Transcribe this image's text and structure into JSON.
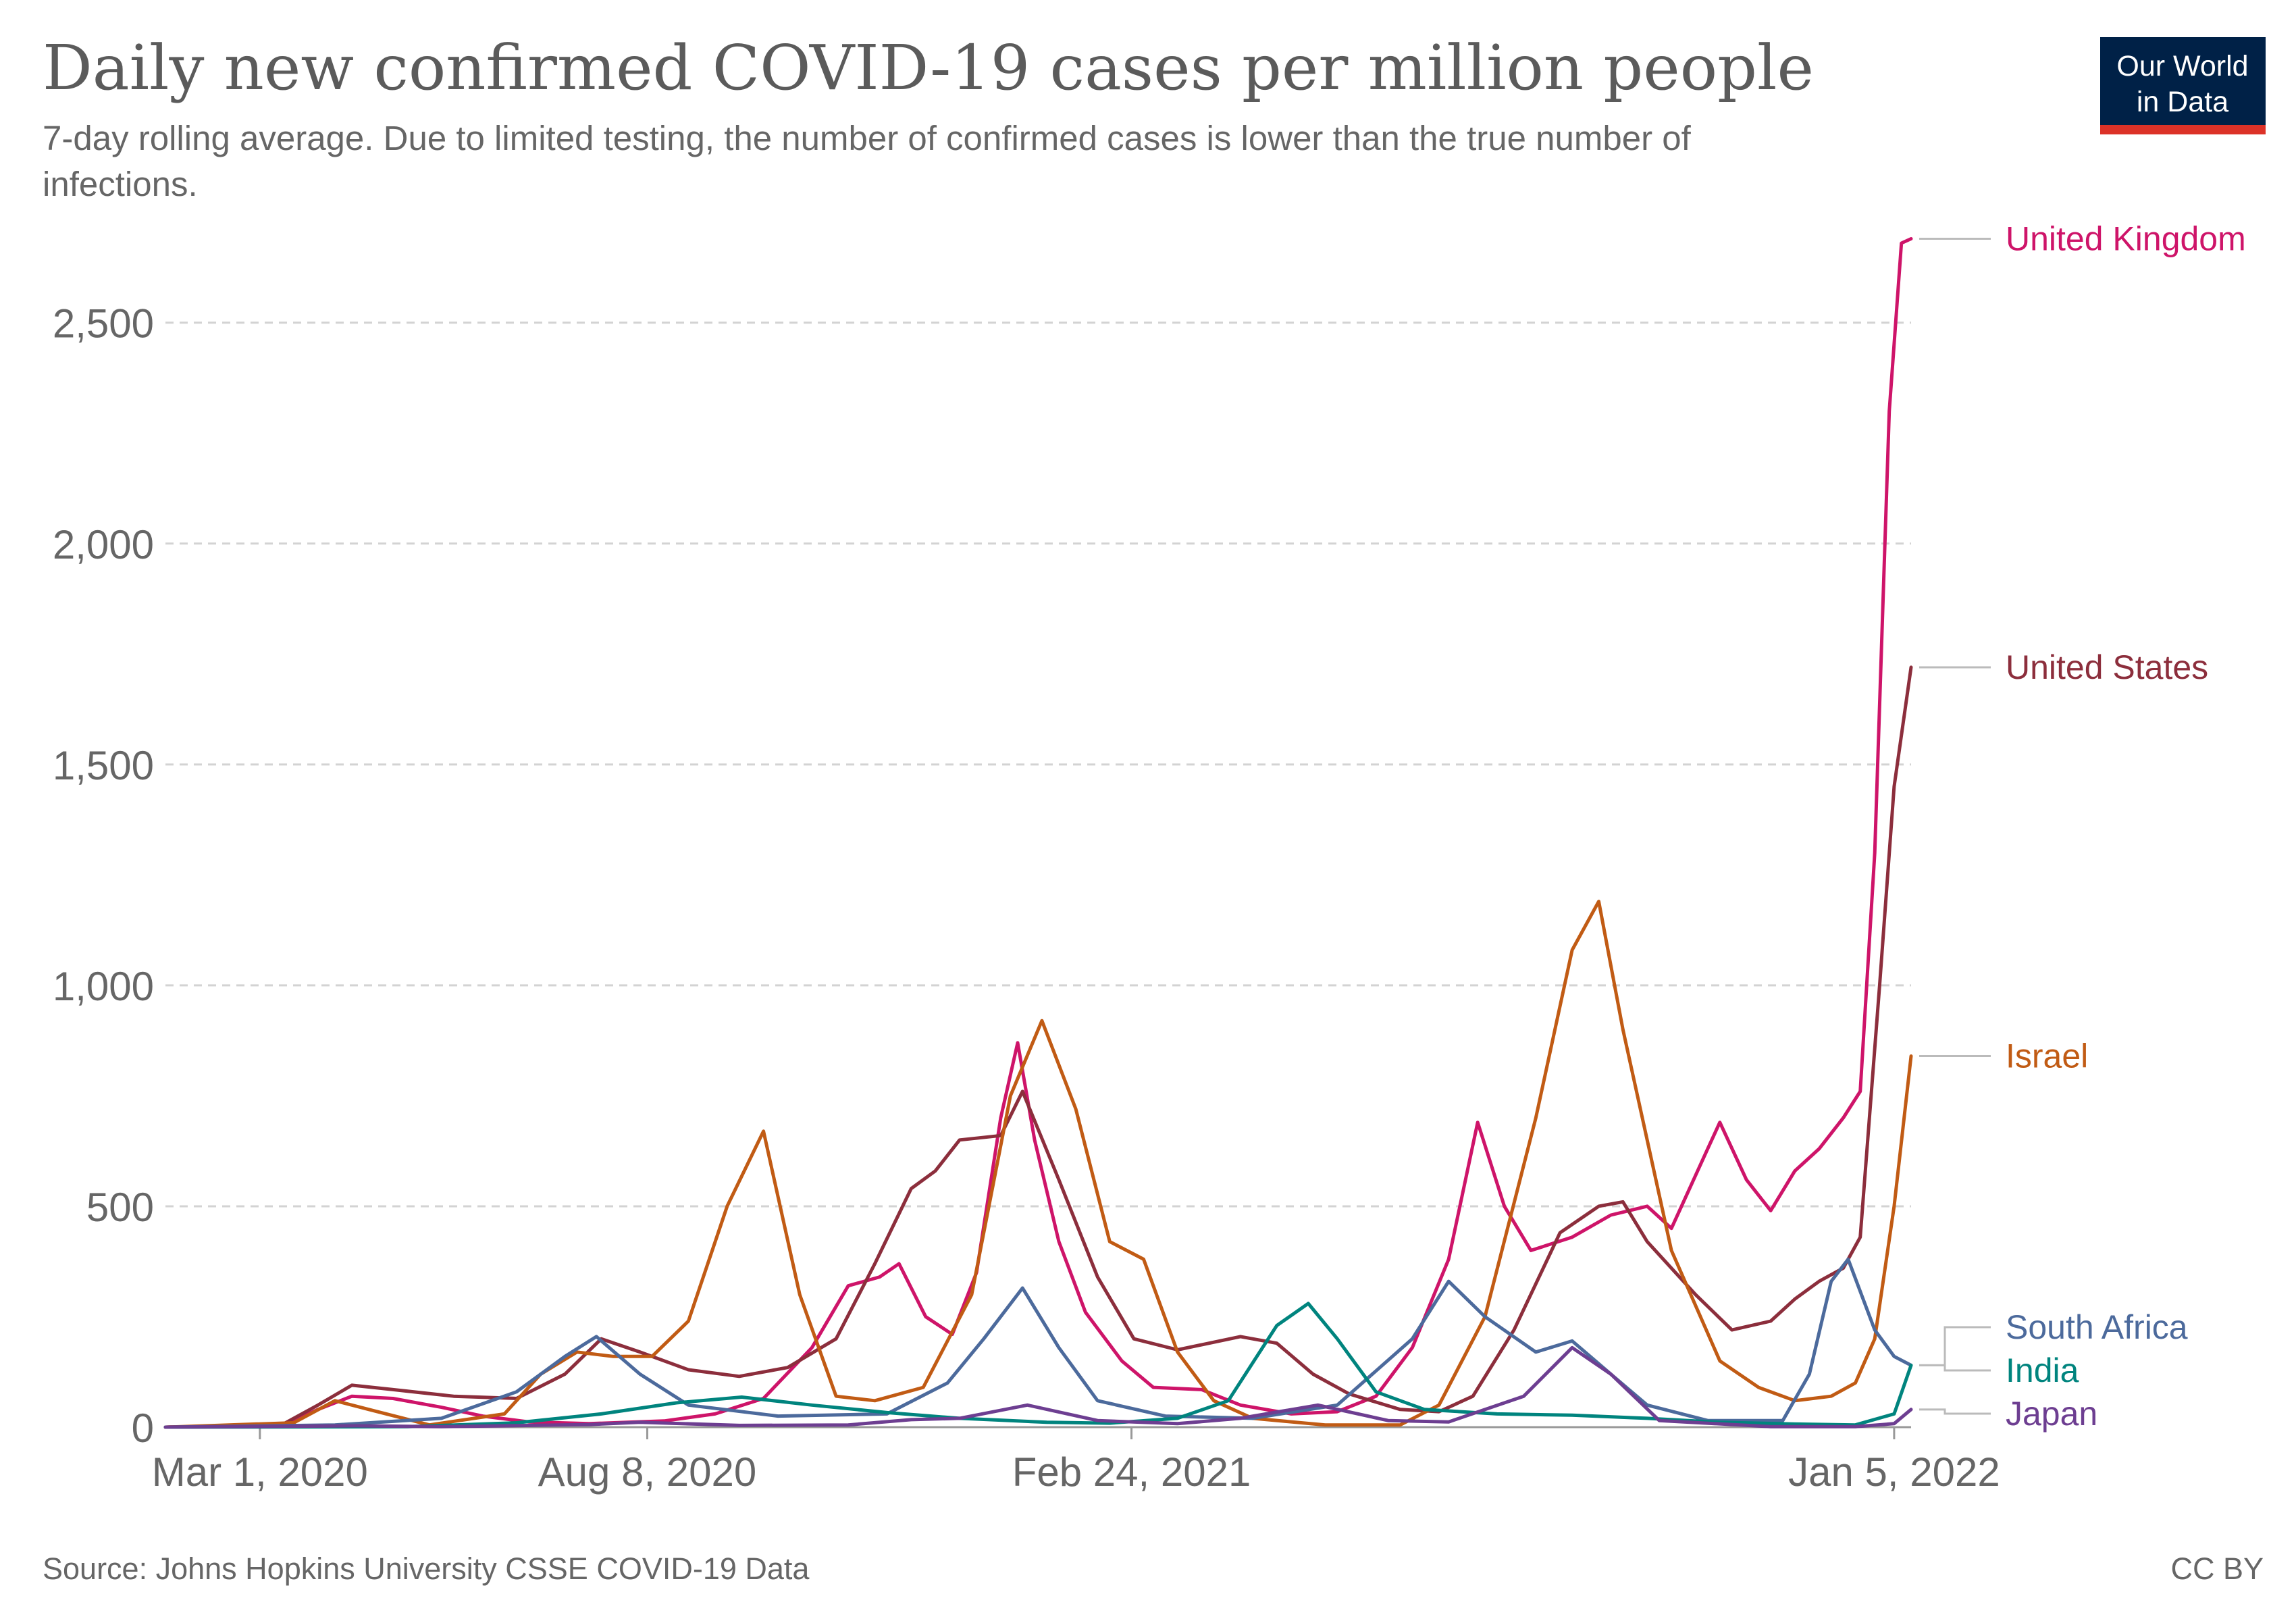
{
  "chart_data": {
    "type": "line",
    "title": "Daily new confirmed COVID-19 cases per million people",
    "subtitle_line1": "7-day rolling average. Due to limited testing, the number of confirmed cases is lower than the true number of",
    "subtitle_line2": "infections.",
    "source": "Source: Johns Hopkins University CSSE COVID-19 Data",
    "license": "CC BY",
    "logo_line1": "Our World",
    "logo_line2": "in Data",
    "x_start": "2020-01-22",
    "x_end": "2022-01-12",
    "x_ticks": [
      {
        "date": "2020-03-01",
        "label": "Mar 1, 2020"
      },
      {
        "date": "2020-08-08",
        "label": "Aug 8, 2020"
      },
      {
        "date": "2021-02-24",
        "label": "Feb 24, 2021"
      },
      {
        "date": "2022-01-05",
        "label": "Jan 5, 2022"
      }
    ],
    "ylim": [
      0,
      2680
    ],
    "y_ticks": [
      0,
      500,
      1000,
      1500,
      2000,
      2500
    ],
    "y_tick_labels": [
      "0",
      "500",
      "1,000",
      "1,500",
      "2,000",
      "2,500"
    ],
    "grid": "horizontal dashed",
    "series": [
      {
        "name": "United Kingdom",
        "color": "#ce1469",
        "points": [
          [
            "2020-01-22",
            0
          ],
          [
            "2020-03-10",
            2
          ],
          [
            "2020-03-25",
            40
          ],
          [
            "2020-04-08",
            70
          ],
          [
            "2020-04-25",
            65
          ],
          [
            "2020-05-15",
            45
          ],
          [
            "2020-06-01",
            25
          ],
          [
            "2020-06-20",
            12
          ],
          [
            "2020-07-15",
            8
          ],
          [
            "2020-08-15",
            14
          ],
          [
            "2020-09-05",
            30
          ],
          [
            "2020-09-25",
            65
          ],
          [
            "2020-10-15",
            180
          ],
          [
            "2020-10-30",
            320
          ],
          [
            "2020-11-12",
            340
          ],
          [
            "2020-11-20",
            370
          ],
          [
            "2020-12-01",
            250
          ],
          [
            "2020-12-12",
            210
          ],
          [
            "2020-12-22",
            350
          ],
          [
            "2021-01-01",
            700
          ],
          [
            "2021-01-08",
            870
          ],
          [
            "2021-01-15",
            650
          ],
          [
            "2021-01-25",
            420
          ],
          [
            "2021-02-05",
            260
          ],
          [
            "2021-02-20",
            150
          ],
          [
            "2021-03-05",
            90
          ],
          [
            "2021-03-25",
            85
          ],
          [
            "2021-04-10",
            50
          ],
          [
            "2021-05-01",
            30
          ],
          [
            "2021-05-20",
            35
          ],
          [
            "2021-06-05",
            70
          ],
          [
            "2021-06-20",
            180
          ],
          [
            "2021-07-05",
            380
          ],
          [
            "2021-07-17",
            690
          ],
          [
            "2021-07-28",
            500
          ],
          [
            "2021-08-08",
            400
          ],
          [
            "2021-08-25",
            430
          ],
          [
            "2021-09-10",
            480
          ],
          [
            "2021-09-25",
            500
          ],
          [
            "2021-10-05",
            450
          ],
          [
            "2021-10-20",
            630
          ],
          [
            "2021-10-25",
            690
          ],
          [
            "2021-11-05",
            560
          ],
          [
            "2021-11-15",
            490
          ],
          [
            "2021-11-25",
            580
          ],
          [
            "2021-12-05",
            630
          ],
          [
            "2021-12-15",
            700
          ],
          [
            "2021-12-22",
            760
          ],
          [
            "2021-12-28",
            1300
          ],
          [
            "2022-01-03",
            2300
          ],
          [
            "2022-01-08",
            2680
          ],
          [
            "2022-01-12",
            2690
          ]
        ]
      },
      {
        "name": "United States",
        "color": "#8c2e3c",
        "points": [
          [
            "2020-01-22",
            0
          ],
          [
            "2020-03-10",
            5
          ],
          [
            "2020-03-25",
            50
          ],
          [
            "2020-04-08",
            95
          ],
          [
            "2020-04-25",
            85
          ],
          [
            "2020-05-20",
            70
          ],
          [
            "2020-06-15",
            65
          ],
          [
            "2020-07-05",
            120
          ],
          [
            "2020-07-20",
            200
          ],
          [
            "2020-08-05",
            170
          ],
          [
            "2020-08-25",
            130
          ],
          [
            "2020-09-15",
            115
          ],
          [
            "2020-10-05",
            135
          ],
          [
            "2020-10-25",
            200
          ],
          [
            "2020-11-10",
            370
          ],
          [
            "2020-11-25",
            540
          ],
          [
            "2020-12-05",
            580
          ],
          [
            "2020-12-15",
            650
          ],
          [
            "2021-01-01",
            660
          ],
          [
            "2021-01-10",
            760
          ],
          [
            "2021-01-25",
            560
          ],
          [
            "2021-02-10",
            340
          ],
          [
            "2021-02-25",
            200
          ],
          [
            "2021-03-15",
            175
          ],
          [
            "2021-04-10",
            205
          ],
          [
            "2021-04-25",
            190
          ],
          [
            "2021-05-10",
            120
          ],
          [
            "2021-05-25",
            75
          ],
          [
            "2021-06-15",
            40
          ],
          [
            "2021-07-01",
            35
          ],
          [
            "2021-07-15",
            70
          ],
          [
            "2021-08-01",
            220
          ],
          [
            "2021-08-20",
            440
          ],
          [
            "2021-09-05",
            500
          ],
          [
            "2021-09-15",
            510
          ],
          [
            "2021-09-25",
            420
          ],
          [
            "2021-10-15",
            300
          ],
          [
            "2021-10-30",
            220
          ],
          [
            "2021-11-15",
            240
          ],
          [
            "2021-11-25",
            290
          ],
          [
            "2021-12-05",
            330
          ],
          [
            "2021-12-15",
            360
          ],
          [
            "2021-12-22",
            430
          ],
          [
            "2021-12-30",
            1000
          ],
          [
            "2022-01-05",
            1450
          ],
          [
            "2022-01-12",
            1720
          ]
        ]
      },
      {
        "name": "Israel",
        "color": "#c15b14",
        "points": [
          [
            "2020-01-22",
            0
          ],
          [
            "2020-03-15",
            10
          ],
          [
            "2020-04-01",
            60
          ],
          [
            "2020-04-15",
            40
          ],
          [
            "2020-05-10",
            5
          ],
          [
            "2020-06-10",
            30
          ],
          [
            "2020-06-25",
            120
          ],
          [
            "2020-07-10",
            170
          ],
          [
            "2020-07-25",
            160
          ],
          [
            "2020-08-10",
            160
          ],
          [
            "2020-08-25",
            240
          ],
          [
            "2020-09-10",
            500
          ],
          [
            "2020-09-25",
            670
          ],
          [
            "2020-10-10",
            300
          ],
          [
            "2020-10-25",
            70
          ],
          [
            "2020-11-10",
            60
          ],
          [
            "2020-11-30",
            90
          ],
          [
            "2020-12-20",
            300
          ],
          [
            "2021-01-05",
            750
          ],
          [
            "2021-01-18",
            920
          ],
          [
            "2021-02-01",
            720
          ],
          [
            "2021-02-15",
            420
          ],
          [
            "2021-03-01",
            380
          ],
          [
            "2021-03-15",
            170
          ],
          [
            "2021-03-30",
            60
          ],
          [
            "2021-04-15",
            20
          ],
          [
            "2021-05-15",
            5
          ],
          [
            "2021-06-15",
            5
          ],
          [
            "2021-07-01",
            50
          ],
          [
            "2021-07-20",
            250
          ],
          [
            "2021-08-10",
            700
          ],
          [
            "2021-08-25",
            1080
          ],
          [
            "2021-09-05",
            1190
          ],
          [
            "2021-09-15",
            900
          ],
          [
            "2021-10-05",
            400
          ],
          [
            "2021-10-25",
            150
          ],
          [
            "2021-11-10",
            90
          ],
          [
            "2021-11-25",
            60
          ],
          [
            "2021-12-10",
            70
          ],
          [
            "2021-12-20",
            100
          ],
          [
            "2021-12-28",
            200
          ],
          [
            "2022-01-05",
            500
          ],
          [
            "2022-01-12",
            840
          ]
        ]
      },
      {
        "name": "South Africa",
        "color": "#4c6a9c",
        "points": [
          [
            "2020-01-22",
            0
          ],
          [
            "2020-04-01",
            5
          ],
          [
            "2020-05-15",
            20
          ],
          [
            "2020-06-15",
            80
          ],
          [
            "2020-07-05",
            160
          ],
          [
            "2020-07-18",
            205
          ],
          [
            "2020-08-05",
            120
          ],
          [
            "2020-08-25",
            50
          ],
          [
            "2020-10-01",
            25
          ],
          [
            "2020-11-15",
            30
          ],
          [
            "2020-12-10",
            100
          ],
          [
            "2020-12-25",
            200
          ],
          [
            "2021-01-10",
            315
          ],
          [
            "2021-01-25",
            180
          ],
          [
            "2021-02-10",
            60
          ],
          [
            "2021-03-10",
            25
          ],
          [
            "2021-04-15",
            20
          ],
          [
            "2021-05-20",
            50
          ],
          [
            "2021-06-20",
            200
          ],
          [
            "2021-07-05",
            330
          ],
          [
            "2021-07-20",
            250
          ],
          [
            "2021-08-10",
            170
          ],
          [
            "2021-08-25",
            195
          ],
          [
            "2021-09-10",
            120
          ],
          [
            "2021-09-25",
            50
          ],
          [
            "2021-10-20",
            15
          ],
          [
            "2021-11-20",
            15
          ],
          [
            "2021-12-01",
            120
          ],
          [
            "2021-12-10",
            330
          ],
          [
            "2021-12-17",
            380
          ],
          [
            "2021-12-28",
            220
          ],
          [
            "2022-01-05",
            160
          ],
          [
            "2022-01-12",
            140
          ]
        ]
      },
      {
        "name": "India",
        "color": "#00847e",
        "points": [
          [
            "2020-01-22",
            0
          ],
          [
            "2020-05-01",
            1
          ],
          [
            "2020-06-15",
            10
          ],
          [
            "2020-07-20",
            30
          ],
          [
            "2020-08-20",
            55
          ],
          [
            "2020-09-16",
            68
          ],
          [
            "2020-10-15",
            50
          ],
          [
            "2020-11-15",
            33
          ],
          [
            "2020-12-15",
            20
          ],
          [
            "2021-01-20",
            11
          ],
          [
            "2021-02-15",
            9
          ],
          [
            "2021-03-15",
            20
          ],
          [
            "2021-04-05",
            60
          ],
          [
            "2021-04-25",
            230
          ],
          [
            "2021-05-08",
            280
          ],
          [
            "2021-05-20",
            200
          ],
          [
            "2021-06-05",
            80
          ],
          [
            "2021-06-25",
            40
          ],
          [
            "2021-07-25",
            30
          ],
          [
            "2021-08-25",
            27
          ],
          [
            "2021-09-25",
            20
          ],
          [
            "2021-10-25",
            11
          ],
          [
            "2021-11-25",
            7
          ],
          [
            "2021-12-20",
            5
          ],
          [
            "2022-01-05",
            30
          ],
          [
            "2022-01-12",
            140
          ]
        ]
      },
      {
        "name": "Japan",
        "color": "#6d3e91",
        "points": [
          [
            "2020-01-22",
            0
          ],
          [
            "2020-04-10",
            3
          ],
          [
            "2020-05-15",
            1
          ],
          [
            "2020-07-15",
            6
          ],
          [
            "2020-08-05",
            11
          ],
          [
            "2020-09-15",
            4
          ],
          [
            "2020-10-30",
            5
          ],
          [
            "2020-11-25",
            17
          ],
          [
            "2020-12-15",
            20
          ],
          [
            "2021-01-12",
            50
          ],
          [
            "2021-02-10",
            15
          ],
          [
            "2021-03-15",
            8
          ],
          [
            "2021-04-10",
            20
          ],
          [
            "2021-05-12",
            50
          ],
          [
            "2021-06-10",
            15
          ],
          [
            "2021-07-05",
            12
          ],
          [
            "2021-08-05",
            70
          ],
          [
            "2021-08-25",
            180
          ],
          [
            "2021-09-10",
            120
          ],
          [
            "2021-09-30",
            15
          ],
          [
            "2021-11-15",
            1
          ],
          [
            "2021-12-20",
            1
          ],
          [
            "2022-01-05",
            8
          ],
          [
            "2022-01-12",
            40
          ]
        ]
      }
    ],
    "legend": [
      {
        "name": "United Kingdom",
        "color": "#ce1469"
      },
      {
        "name": "United States",
        "color": "#8c2e3c"
      },
      {
        "name": "Israel",
        "color": "#c15b14"
      },
      {
        "name": "South Africa",
        "color": "#4c6a9c"
      },
      {
        "name": "India",
        "color": "#00847e"
      },
      {
        "name": "Japan",
        "color": "#6d3e91"
      }
    ],
    "legend_placement": "right, at series end values"
  }
}
